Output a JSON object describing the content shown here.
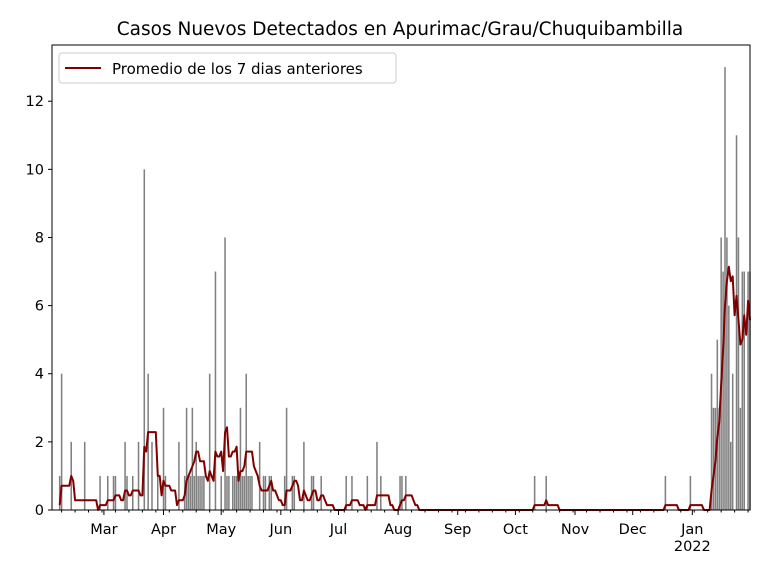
{
  "chart_data": {
    "type": "bar",
    "title": "Casos Nuevos Detectados en Apurimac/Grau/Chuquibambilla",
    "xlabel": "",
    "ylabel": "",
    "xlim": [
      "2021-02-02",
      "2022-01-31"
    ],
    "ylim": [
      0,
      13.65
    ],
    "yticks": [
      0,
      2,
      4,
      6,
      8,
      10,
      12
    ],
    "xticks": [
      {
        "date": "2021-03-01",
        "label": "Mar"
      },
      {
        "date": "2021-04-01",
        "label": "Apr"
      },
      {
        "date": "2021-05-01",
        "label": "May"
      },
      {
        "date": "2021-06-01",
        "label": "Jun"
      },
      {
        "date": "2021-07-01",
        "label": "Jul"
      },
      {
        "date": "2021-08-01",
        "label": "Aug"
      },
      {
        "date": "2021-09-01",
        "label": "Sep"
      },
      {
        "date": "2021-10-01",
        "label": "Oct"
      },
      {
        "date": "2021-11-01",
        "label": "Nov"
      },
      {
        "date": "2021-12-01",
        "label": "Dec"
      },
      {
        "date": "2022-01-01",
        "label": "Jan\n2022"
      }
    ],
    "grid": false,
    "legend": {
      "placement": "top-left",
      "entries": [
        "Promedio de los 7 dias anteriores"
      ]
    },
    "colors": {
      "bars": "#808080",
      "line": "#800000"
    },
    "daily_cases": [
      [
        "2021-02-06",
        1
      ],
      [
        "2021-02-07",
        4
      ],
      [
        "2021-02-12",
        2
      ],
      [
        "2021-02-19",
        2
      ],
      [
        "2021-02-27",
        1
      ],
      [
        "2021-03-03",
        1
      ],
      [
        "2021-03-06",
        1
      ],
      [
        "2021-03-07",
        1
      ],
      [
        "2021-03-12",
        2
      ],
      [
        "2021-03-13",
        1
      ],
      [
        "2021-03-16",
        1
      ],
      [
        "2021-03-19",
        2
      ],
      [
        "2021-03-22",
        10
      ],
      [
        "2021-03-24",
        4
      ],
      [
        "2021-03-26",
        2
      ],
      [
        "2021-03-29",
        1
      ],
      [
        "2021-04-01",
        3
      ],
      [
        "2021-04-02",
        1
      ],
      [
        "2021-04-09",
        2
      ],
      [
        "2021-04-12",
        1
      ],
      [
        "2021-04-13",
        3
      ],
      [
        "2021-04-14",
        1
      ],
      [
        "2021-04-15",
        1
      ],
      [
        "2021-04-16",
        3
      ],
      [
        "2021-04-17",
        1
      ],
      [
        "2021-04-18",
        2
      ],
      [
        "2021-04-19",
        1
      ],
      [
        "2021-04-20",
        1
      ],
      [
        "2021-04-21",
        1
      ],
      [
        "2021-04-22",
        1
      ],
      [
        "2021-04-25",
        4
      ],
      [
        "2021-04-28",
        7
      ],
      [
        "2021-05-01",
        1
      ],
      [
        "2021-05-03",
        8
      ],
      [
        "2021-05-04",
        1
      ],
      [
        "2021-05-05",
        1
      ],
      [
        "2021-05-07",
        1
      ],
      [
        "2021-05-08",
        1
      ],
      [
        "2021-05-09",
        1
      ],
      [
        "2021-05-10",
        1
      ],
      [
        "2021-05-11",
        3
      ],
      [
        "2021-05-12",
        1
      ],
      [
        "2021-05-13",
        1
      ],
      [
        "2021-05-14",
        4
      ],
      [
        "2021-05-15",
        1
      ],
      [
        "2021-05-16",
        1
      ],
      [
        "2021-05-17",
        1
      ],
      [
        "2021-05-21",
        2
      ],
      [
        "2021-05-23",
        1
      ],
      [
        "2021-05-24",
        1
      ],
      [
        "2021-05-26",
        1
      ],
      [
        "2021-05-27",
        1
      ],
      [
        "2021-06-03",
        1
      ],
      [
        "2021-06-04",
        3
      ],
      [
        "2021-06-07",
        1
      ],
      [
        "2021-06-08",
        1
      ],
      [
        "2021-06-13",
        2
      ],
      [
        "2021-06-17",
        1
      ],
      [
        "2021-06-18",
        1
      ],
      [
        "2021-06-22",
        1
      ],
      [
        "2021-07-05",
        1
      ],
      [
        "2021-07-08",
        1
      ],
      [
        "2021-07-16",
        1
      ],
      [
        "2021-07-21",
        2
      ],
      [
        "2021-07-23",
        1
      ],
      [
        "2021-08-02",
        1
      ],
      [
        "2021-08-03",
        1
      ],
      [
        "2021-08-05",
        1
      ],
      [
        "2021-10-11",
        1
      ],
      [
        "2021-10-17",
        1
      ],
      [
        "2021-12-18",
        1
      ],
      [
        "2021-12-31",
        1
      ],
      [
        "2022-01-11",
        4
      ],
      [
        "2022-01-12",
        3
      ],
      [
        "2022-01-13",
        3
      ],
      [
        "2022-01-14",
        5
      ],
      [
        "2022-01-15",
        3
      ],
      [
        "2022-01-16",
        8
      ],
      [
        "2022-01-17",
        7
      ],
      [
        "2022-01-18",
        13
      ],
      [
        "2022-01-19",
        8
      ],
      [
        "2022-01-20",
        6
      ],
      [
        "2022-01-21",
        2
      ],
      [
        "2022-01-22",
        4
      ],
      [
        "2022-01-24",
        11
      ],
      [
        "2022-01-25",
        8
      ],
      [
        "2022-01-26",
        3
      ],
      [
        "2022-01-27",
        7
      ],
      [
        "2022-01-28",
        7
      ],
      [
        "2022-01-30",
        7
      ],
      [
        "2022-01-31",
        7
      ]
    ]
  }
}
